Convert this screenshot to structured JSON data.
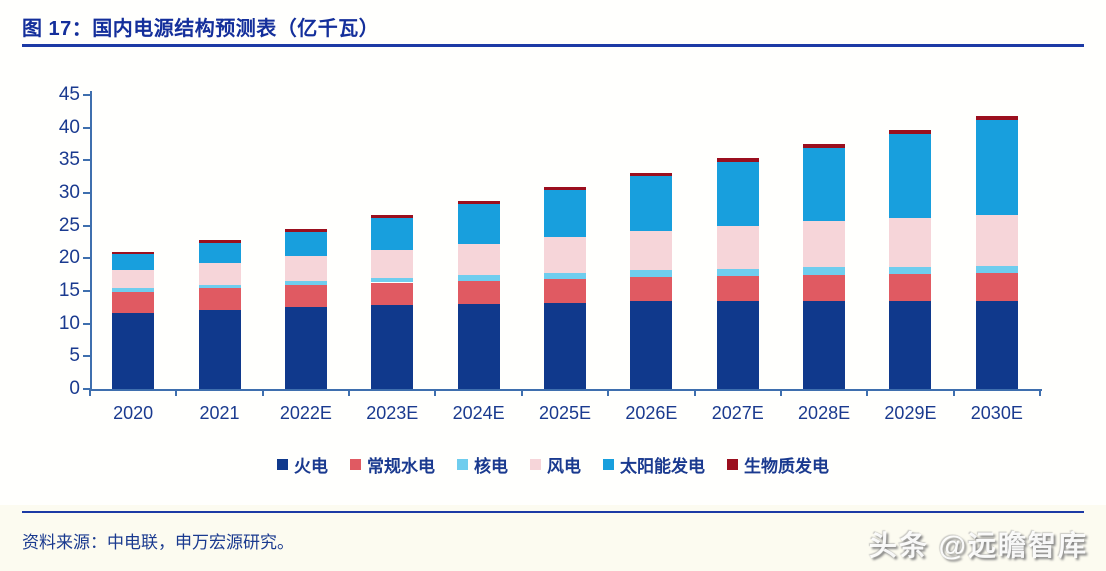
{
  "figure": {
    "title": "图 17：国内电源结构预测表（亿千瓦）",
    "source": "资料来源：中电联，申万宏源研究。",
    "watermark": "头条 @远瞻智库"
  },
  "colors": {
    "title_navy": "#142f9b",
    "axis_line": "#3f6fae",
    "label_navy": "#1a3a8f",
    "rule_navy": "#1c3aa5",
    "footer_bg": "#fcfbf0"
  },
  "chart_data": {
    "type": "bar",
    "stacked": true,
    "title": "图 17：国内电源结构预测表（亿千瓦）",
    "xlabel": "",
    "ylabel": "亿千瓦",
    "ylim": [
      0,
      45
    ],
    "ytick_step": 5,
    "grid": false,
    "legend_position": "bottom",
    "categories": [
      "2020",
      "2021",
      "2022E",
      "2023E",
      "2024E",
      "2025E",
      "2026E",
      "2027E",
      "2028E",
      "2029E",
      "2030E"
    ],
    "series": [
      {
        "name": "火电",
        "color": "#10398c",
        "values": [
          11.7,
          12.1,
          12.5,
          12.8,
          13.0,
          13.2,
          13.4,
          13.4,
          13.5,
          13.5,
          13.5
        ]
      },
      {
        "name": "常规水电",
        "color": "#e05a62",
        "values": [
          3.2,
          3.3,
          3.4,
          3.5,
          3.6,
          3.7,
          3.8,
          3.9,
          4.0,
          4.1,
          4.2
        ]
      },
      {
        "name": "核电",
        "color": "#6fcdee",
        "values": [
          0.5,
          0.55,
          0.6,
          0.7,
          0.8,
          0.9,
          1.0,
          1.0,
          1.1,
          1.1,
          1.2
        ]
      },
      {
        "name": "风电",
        "color": "#f6d5d9",
        "values": [
          2.8,
          3.3,
          3.8,
          4.3,
          4.8,
          5.4,
          6.0,
          6.6,
          7.1,
          7.5,
          7.8
        ]
      },
      {
        "name": "太阳能发电",
        "color": "#189fdd",
        "values": [
          2.5,
          3.1,
          3.8,
          4.9,
          6.1,
          7.2,
          8.4,
          9.8,
          11.2,
          12.8,
          14.4
        ]
      },
      {
        "name": "生物质发电",
        "color": "#9b0f1e",
        "values": [
          0.3,
          0.4,
          0.4,
          0.4,
          0.5,
          0.5,
          0.5,
          0.6,
          0.6,
          0.7,
          0.7
        ]
      }
    ],
    "totals": [
      21.0,
      22.75,
      24.5,
      26.6,
      28.8,
      30.9,
      33.1,
      35.3,
      37.5,
      39.7,
      41.8
    ]
  }
}
